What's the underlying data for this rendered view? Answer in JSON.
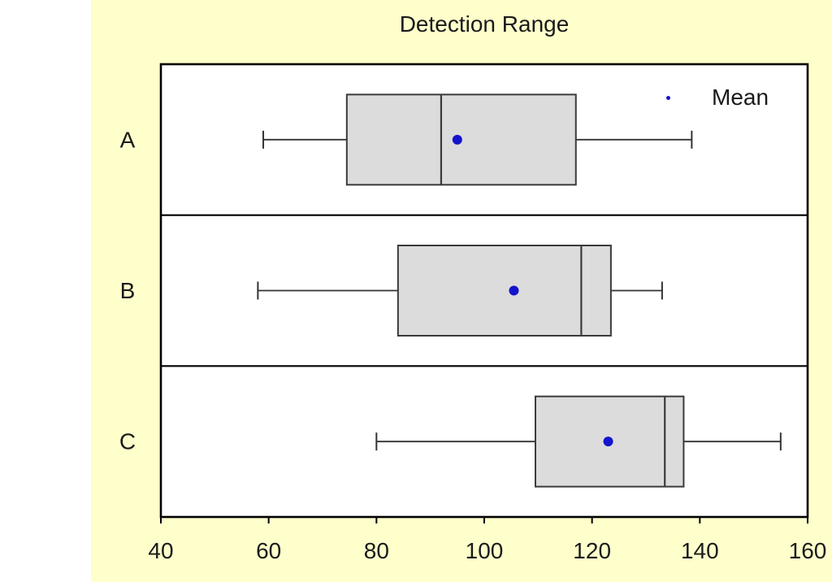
{
  "chart_data": {
    "type": "boxplot",
    "orientation": "horizontal",
    "title": "Detection Range",
    "categories": [
      "A",
      "B",
      "C"
    ],
    "series": [
      {
        "category": "A",
        "whisker_low": 59,
        "q1": 74.5,
        "median": 92,
        "q3": 117,
        "whisker_high": 138.5,
        "mean": 95
      },
      {
        "category": "B",
        "whisker_low": 58,
        "q1": 84,
        "median": 118,
        "q3": 123.5,
        "whisker_high": 133,
        "mean": 105.5
      },
      {
        "category": "C",
        "whisker_low": 80,
        "q1": 109.5,
        "median": 133.5,
        "q3": 137,
        "whisker_high": 155,
        "mean": 123
      }
    ],
    "xlabel": "",
    "ylabel": "",
    "x_ticks": [
      40,
      60,
      80,
      100,
      120,
      140,
      160
    ],
    "xlim": [
      40,
      160
    ],
    "grid": false,
    "legend": {
      "position": "top-right-inside",
      "entries": [
        {
          "label": "Mean",
          "marker": "dot"
        }
      ]
    }
  },
  "colors": {
    "page_bg": "#FFFFFF",
    "chart_bg": "#FFFFCC",
    "plot_bg": "#FFFFFF",
    "frame": "#000000",
    "box_fill": "#DCDCDC",
    "box_stroke": "#3B3B3B",
    "whisker": "#333333",
    "mean": "#1414CC",
    "text": "#1A1A1A"
  }
}
